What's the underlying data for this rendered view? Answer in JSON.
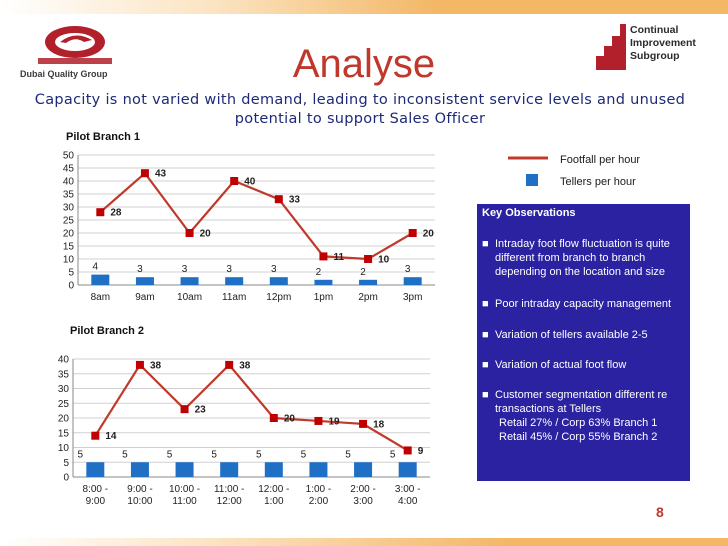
{
  "slide": {
    "title": "Analyse",
    "subtitle": "Capacity is not varied with demand, leading to inconsistent service levels and unused potential to support Sales Officer",
    "page_number": "8"
  },
  "logos": {
    "left_text": "Dubai Quality Group",
    "right_line1": "Continual",
    "right_line2": "Improvement",
    "right_line3": "Subgroup"
  },
  "legend": {
    "line_label": "Footfall per hour",
    "bar_label": "Tellers per hour",
    "line_color": "#c0392b",
    "bar_color": "#1f6fc5"
  },
  "observations": {
    "heading": "Key Observations",
    "items": [
      "Intraday foot flow fluctuation is quite different from branch to branch depending on the location and size",
      "Poor intraday capacity management",
      "Variation of tellers available 2-5",
      "Variation of actual foot flow",
      "Customer segmentation different re transactions at Tellers"
    ],
    "sub_items": [
      "Retail 27% / Corp 63% Branch 1",
      "Retail 45% / Corp 55% Branch 2"
    ]
  },
  "chart_data": [
    {
      "type": "bar+line",
      "title": "Pilot Branch 1",
      "categories": [
        "8am",
        "9am",
        "10am",
        "11am",
        "12pm",
        "1pm",
        "2pm",
        "3pm"
      ],
      "series": [
        {
          "name": "Footfall per hour",
          "type": "line",
          "values": [
            28,
            43,
            20,
            40,
            33,
            11,
            10,
            20
          ]
        },
        {
          "name": "Tellers per hour",
          "type": "bar",
          "values": [
            4,
            3,
            3,
            3,
            3,
            2,
            2,
            3
          ]
        }
      ],
      "ylim": [
        0,
        50
      ],
      "yticks": [
        0,
        5,
        10,
        15,
        20,
        25,
        30,
        35,
        40,
        45,
        50
      ]
    },
    {
      "type": "bar+line",
      "title": "Pilot Branch 2",
      "categories": [
        "8:00 - 9:00",
        "9:00 - 10:00",
        "10:00 - 11:00",
        "11:00 - 12:00",
        "12:00 - 1:00",
        "1:00 - 2:00",
        "2:00 - 3:00",
        "3:00 - 4:00"
      ],
      "series": [
        {
          "name": "Footfall per hour",
          "type": "line",
          "values": [
            14,
            38,
            23,
            38,
            20,
            19,
            18,
            9
          ]
        },
        {
          "name": "Tellers per hour",
          "type": "bar",
          "values": [
            5,
            5,
            5,
            5,
            5,
            5,
            5,
            5
          ]
        }
      ],
      "ylim": [
        0,
        40
      ],
      "yticks": [
        0,
        5,
        10,
        15,
        20,
        25,
        30,
        35,
        40
      ]
    }
  ]
}
